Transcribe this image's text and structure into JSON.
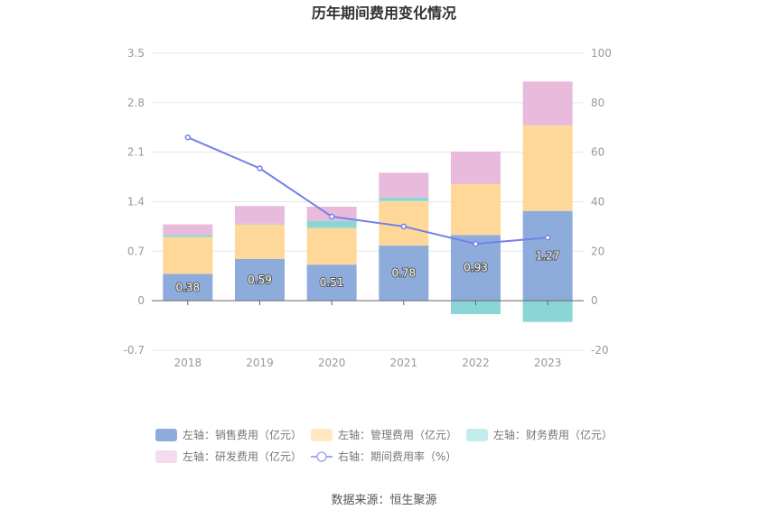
{
  "chart_data": {
    "type": "bar",
    "title": "历年期间费用变化情况",
    "categories": [
      "2018",
      "2019",
      "2020",
      "2021",
      "2022",
      "2023"
    ],
    "y_left": {
      "ticks": [
        "3.5",
        "2.8",
        "2.1",
        "1.4",
        "0.7",
        "0",
        "-0.7"
      ],
      "ylim": [
        -0.7,
        3.5
      ]
    },
    "y_right": {
      "ticks": [
        "100",
        "80",
        "60",
        "40",
        "20",
        "0",
        "-20"
      ],
      "ylim": [
        -20,
        100
      ]
    },
    "series": [
      {
        "name": "左轴：销售费用（亿元）",
        "axis": "left",
        "kind": "bar",
        "color": "#8eacdb",
        "values": [
          0.38,
          0.59,
          0.51,
          0.78,
          0.93,
          1.27
        ],
        "labels": [
          "0.38",
          "0.59",
          "0.51",
          "0.78",
          "0.93",
          "1.27"
        ]
      },
      {
        "name": "左轴：管理费用（亿元）",
        "axis": "left",
        "kind": "bar",
        "color": "#ffd899",
        "values": [
          0.52,
          0.49,
          0.52,
          0.63,
          0.72,
          1.21
        ]
      },
      {
        "name": "左轴：财务费用（亿元）",
        "axis": "left",
        "kind": "bar",
        "color": "#8ad6d6",
        "values": [
          0.03,
          0.01,
          0.1,
          0.05,
          -0.19,
          -0.3
        ]
      },
      {
        "name": "左轴：研发费用（亿元）",
        "axis": "left",
        "kind": "bar",
        "color": "#e8bbdc",
        "values": [
          0.15,
          0.25,
          0.2,
          0.35,
          0.46,
          0.62
        ]
      },
      {
        "name": "右轴：期间费用率（%）",
        "axis": "right",
        "kind": "line",
        "color": "#7480e8",
        "values": [
          66,
          53.5,
          34,
          30,
          23,
          25.5
        ]
      }
    ],
    "legend_position": "bottom",
    "grid": true
  },
  "source": "数据来源：恒生聚源"
}
